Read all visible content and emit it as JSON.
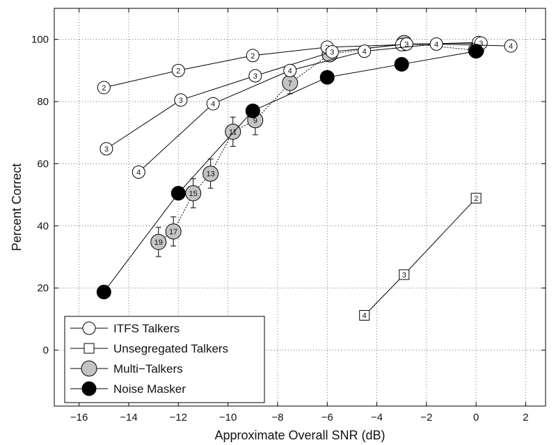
{
  "chart_data": {
    "type": "line",
    "xlabel": "Approximate Overall SNR (dB)",
    "ylabel": "Percent Correct",
    "xlim": [
      -17,
      2.8
    ],
    "ylim": [
      -18,
      110
    ],
    "xticks": [
      -16,
      -14,
      -12,
      -10,
      -8,
      -6,
      -4,
      -2,
      0,
      2
    ],
    "yticks": [
      0,
      20,
      40,
      60,
      80,
      100
    ],
    "grid": true,
    "legend_position": "bottom-left",
    "series": [
      {
        "name": "ITFS Talkers",
        "style": "itfs",
        "points": [
          {
            "x": -15,
            "y": 84.5,
            "label": "2"
          },
          {
            "x": -12,
            "y": 90,
            "label": "2"
          },
          {
            "x": -9,
            "y": 94.8,
            "label": "2"
          },
          {
            "x": -6,
            "y": 97.5,
            "label": "2"
          },
          {
            "x": -3,
            "y": 98.3,
            "label": "2"
          },
          {
            "x": 0.1,
            "y": 99,
            "label": "2"
          }
        ]
      },
      {
        "name": "",
        "style": "itfs",
        "points": [
          {
            "x": -14.9,
            "y": 64.8,
            "label": "3"
          },
          {
            "x": -11.9,
            "y": 80.5,
            "label": "3"
          },
          {
            "x": -8.9,
            "y": 88.3,
            "label": "3"
          },
          {
            "x": -5.8,
            "y": 96,
            "label": "3"
          },
          {
            "x": -2.8,
            "y": 98.5,
            "label": "3"
          },
          {
            "x": 0.2,
            "y": 98.8,
            "label": "3"
          }
        ]
      },
      {
        "name": "",
        "style": "itfs",
        "points": [
          {
            "x": -13.6,
            "y": 57.3,
            "label": "4"
          },
          {
            "x": -10.6,
            "y": 79.3,
            "label": "4"
          },
          {
            "x": -7.5,
            "y": 90,
            "label": "4"
          },
          {
            "x": -4.5,
            "y": 96.2,
            "label": "4"
          },
          {
            "x": -1.6,
            "y": 98.5,
            "label": "4"
          },
          {
            "x": 1.4,
            "y": 97.9,
            "label": "4"
          }
        ]
      },
      {
        "name": "Unsegregated Talkers",
        "style": "unseg",
        "points": [
          {
            "x": -4.5,
            "y": 11.2,
            "label": "4"
          },
          {
            "x": -2.9,
            "y": 24.3,
            "label": "3"
          },
          {
            "x": 0,
            "y": 48.9,
            "label": "2"
          }
        ]
      },
      {
        "name": "Multi−Talkers",
        "style": "multi",
        "points": [
          {
            "x": -12.8,
            "y": 34.8,
            "label": "19",
            "err": 4.7
          },
          {
            "x": -12.2,
            "y": 38.2,
            "label": "17",
            "err": 4.7
          },
          {
            "x": -11.4,
            "y": 50.5,
            "label": "15",
            "err": 4.7
          },
          {
            "x": -10.7,
            "y": 56.8,
            "label": "13",
            "err": 4.7
          },
          {
            "x": -9.8,
            "y": 70.3,
            "label": "11",
            "err": 4.7
          },
          {
            "x": -8.9,
            "y": 74,
            "label": "9",
            "err": 4.7
          },
          {
            "x": -7.5,
            "y": 86,
            "label": "7",
            "err": 3.5
          },
          {
            "x": -5.9,
            "y": 95.2,
            "label": "5"
          },
          {
            "x": -2.9,
            "y": 98.8,
            "label": "3"
          },
          {
            "x": 0,
            "y": 96.5,
            "label": "2"
          }
        ]
      },
      {
        "name": "Noise Masker",
        "style": "noise",
        "points": [
          {
            "x": -15,
            "y": 18.7
          },
          {
            "x": -12,
            "y": 50.5
          },
          {
            "x": -9,
            "y": 77
          },
          {
            "x": -6,
            "y": 87.8
          },
          {
            "x": -3,
            "y": 92
          },
          {
            "x": 0,
            "y": 96.2
          }
        ]
      }
    ]
  },
  "legend": {
    "items": [
      {
        "label": "ITFS Talkers",
        "style": "itfs"
      },
      {
        "label": "Unsegregated Talkers",
        "style": "unseg"
      },
      {
        "label": "Multi−Talkers",
        "style": "multi"
      },
      {
        "label": "Noise Masker",
        "style": "noise"
      }
    ]
  }
}
